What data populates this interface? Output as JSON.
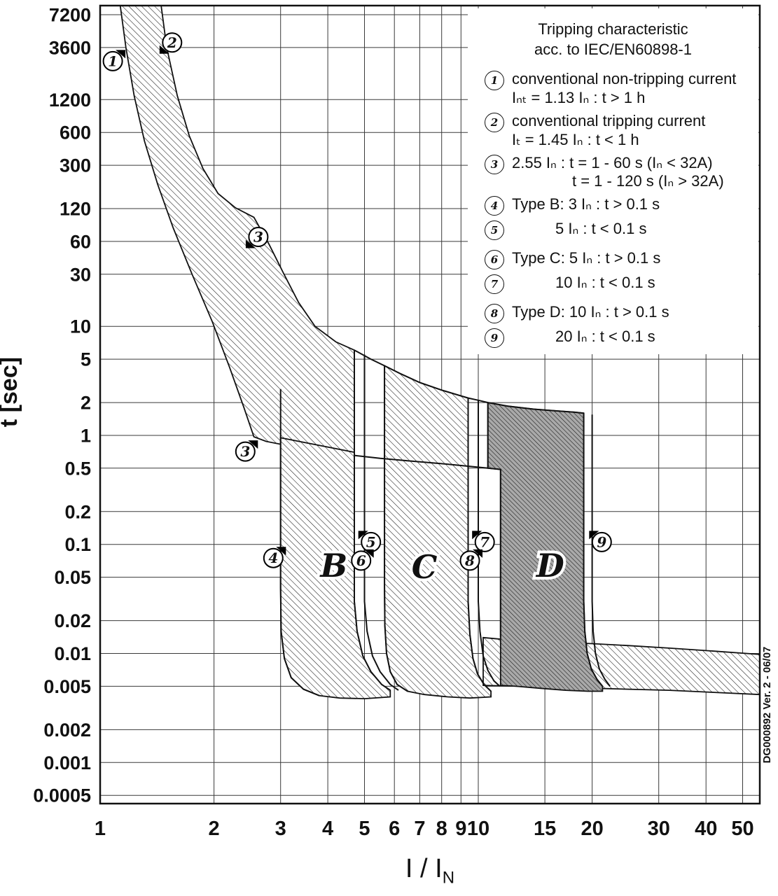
{
  "watermark": "DG000892 Ver. 2 - 06/07",
  "legend": {
    "title1": "Tripping characteristic",
    "title2": "acc. to IEC/EN60898-1",
    "items": [
      {
        "num": "1",
        "line1": "conventional non-tripping current",
        "line2": "Iₙₜ = 1.13 Iₙ : t > 1 h"
      },
      {
        "num": "2",
        "line1": "conventional tripping current",
        "line2": "Iₜ = 1.45 Iₙ : t < 1 h"
      },
      {
        "num": "3",
        "line1": "2.55 Iₙ : t = 1 - 60 s (Iₙ < 32A)",
        "line2": "t = 1 - 120 s (Iₙ > 32A)"
      },
      {
        "num": "4",
        "line1": "Type B: 3 Iₙ : t > 0.1 s"
      },
      {
        "num": "5",
        "line1": "5 Iₙ : t < 0.1 s"
      },
      {
        "num": "6",
        "line1": "Type C: 5 Iₙ : t > 0.1 s"
      },
      {
        "num": "7",
        "line1": "10 Iₙ : t < 0.1 s"
      },
      {
        "num": "8",
        "line1": "Type D: 10 Iₙ : t > 0.1 s"
      },
      {
        "num": "9",
        "line1": "20 Iₙ : t < 0.1 s"
      }
    ]
  },
  "chart_data": {
    "type": "area",
    "title": "Tripping characteristic acc. to IEC/EN60898-1",
    "x_axis": {
      "title_main": "I / I",
      "title_sub": "N",
      "scale": "log",
      "min": 1,
      "max": 55.5,
      "ticks": [
        1,
        2,
        3,
        4,
        5,
        6,
        7,
        8,
        9,
        10,
        15,
        20,
        30,
        40,
        50
      ]
    },
    "y_axis": {
      "label": "t [sec]",
      "scale": "log",
      "min": 0.00042,
      "max": 8730,
      "ticks": [
        7200,
        3600,
        1200,
        600,
        300,
        120,
        60,
        30,
        10,
        5,
        2,
        1,
        0.5,
        0.2,
        0.1,
        0.05,
        0.02,
        0.01,
        0.005,
        0.002,
        0.001,
        0.0005
      ]
    },
    "regions": [
      {
        "name": "thermal-band",
        "fill": "hatch",
        "points": [
          [
            1.45,
            8730
          ],
          [
            1.5,
            3600
          ],
          [
            1.6,
            1300
          ],
          [
            1.72,
            560
          ],
          [
            1.87,
            280
          ],
          [
            2.05,
            165
          ],
          [
            2.28,
            122
          ],
          [
            2.55,
            100
          ],
          [
            2.8,
            56
          ],
          [
            3.05,
            31
          ],
          [
            3.35,
            16.5
          ],
          [
            3.7,
            10
          ],
          [
            4.2,
            7.2
          ],
          [
            4.7,
            6.05
          ],
          [
            4.7,
            0.655
          ],
          [
            4.0,
            0.72
          ],
          [
            3.5,
            0.77
          ],
          [
            3.0,
            0.83
          ],
          [
            2.75,
            0.88
          ],
          [
            2.55,
            0.97
          ],
          [
            2.4,
            1.8
          ],
          [
            2.2,
            4.2
          ],
          [
            1.98,
            11
          ],
          [
            1.75,
            30
          ],
          [
            1.56,
            80
          ],
          [
            1.42,
            200
          ],
          [
            1.31,
            500
          ],
          [
            1.23,
            1300
          ],
          [
            1.17,
            3600
          ],
          [
            1.13,
            8730
          ]
        ]
      },
      {
        "name": "band-B",
        "fill": "hatch",
        "points": [
          [
            3,
            0.95
          ],
          [
            4.7,
            0.7
          ],
          [
            4.7,
            0.03
          ],
          [
            4.78,
            0.016
          ],
          [
            4.95,
            0.0095
          ],
          [
            5.2,
            0.0068
          ],
          [
            5.55,
            0.0052
          ],
          [
            5.85,
            0.0046
          ],
          [
            5.85,
            0.004
          ],
          [
            5.0,
            0.00385
          ],
          [
            4.3,
            0.0039
          ],
          [
            3.8,
            0.0041
          ],
          [
            3.45,
            0.0047
          ],
          [
            3.2,
            0.006
          ],
          [
            3.07,
            0.009
          ],
          [
            3.01,
            0.016
          ],
          [
            3.0,
            0.04
          ]
        ]
      },
      {
        "name": "band-C",
        "fill": "hatch",
        "points": [
          [
            5.65,
            4.35
          ],
          [
            6.2,
            3.7
          ],
          [
            7,
            3.05
          ],
          [
            8,
            2.6
          ],
          [
            9,
            2.3
          ],
          [
            9.4,
            2.2
          ],
          [
            9.4,
            0.03
          ],
          [
            9.5,
            0.015
          ],
          [
            9.68,
            0.009
          ],
          [
            9.95,
            0.0065
          ],
          [
            10.35,
            0.0052
          ],
          [
            10.8,
            0.0045
          ],
          [
            10.8,
            0.004
          ],
          [
            9.5,
            0.0039
          ],
          [
            8.3,
            0.004
          ],
          [
            7.2,
            0.0042
          ],
          [
            6.5,
            0.0045
          ],
          [
            6.1,
            0.0052
          ],
          [
            5.85,
            0.0068
          ],
          [
            5.72,
            0.01
          ],
          [
            5.66,
            0.018
          ],
          [
            5.65,
            0.04
          ]
        ]
      },
      {
        "name": "bottom-band",
        "fill": "hatch",
        "points": [
          [
            10.3,
            0.014
          ],
          [
            13,
            0.013
          ],
          [
            16,
            0.0127
          ],
          [
            20,
            0.0123
          ],
          [
            25,
            0.0118
          ],
          [
            32,
            0.0112
          ],
          [
            42,
            0.0105
          ],
          [
            55.5,
            0.0098
          ],
          [
            55.5,
            0.0042
          ],
          [
            42,
            0.0044
          ],
          [
            32,
            0.0046
          ],
          [
            25,
            0.0047
          ],
          [
            20,
            0.0048
          ],
          [
            16,
            0.0049
          ],
          [
            13,
            0.005
          ],
          [
            10.3,
            0.0051
          ]
        ]
      },
      {
        "name": "band-D",
        "fill": "hatchD",
        "points": [
          [
            10.6,
            2.0
          ],
          [
            12,
            1.85
          ],
          [
            14,
            1.74
          ],
          [
            16,
            1.68
          ],
          [
            18,
            1.63
          ],
          [
            19,
            1.6
          ],
          [
            19,
            0.03
          ],
          [
            19.12,
            0.016
          ],
          [
            19.4,
            0.01
          ],
          [
            19.9,
            0.0072
          ],
          [
            20.6,
            0.0058
          ],
          [
            21.3,
            0.005
          ],
          [
            21.3,
            0.0045
          ],
          [
            19.5,
            0.0045
          ],
          [
            17,
            0.0046
          ],
          [
            14.5,
            0.0048
          ],
          [
            12.6,
            0.005
          ],
          [
            11.45,
            0.0051
          ],
          [
            11.45,
            0.487
          ],
          [
            10.6,
            0.5
          ]
        ]
      }
    ],
    "lines": [
      {
        "name": "lower-curve-tail",
        "points": [
          [
            4.7,
            0.655
          ],
          [
            5.5,
            0.615
          ],
          [
            6.5,
            0.585
          ],
          [
            8,
            0.55
          ],
          [
            9.5,
            0.52
          ],
          [
            10.6,
            0.5
          ],
          [
            11.45,
            0.487
          ],
          [
            11.45,
            0.014
          ]
        ]
      },
      {
        "name": "upper-curve-ext",
        "points": [
          [
            4.7,
            6.05
          ],
          [
            5.2,
            5.0
          ],
          [
            5.65,
            4.35
          ],
          [
            6.2,
            3.7
          ],
          [
            7,
            3.05
          ],
          [
            8,
            2.6
          ],
          [
            9,
            2.3
          ],
          [
            9.4,
            2.2
          ],
          [
            10,
            2.1
          ],
          [
            10.6,
            2.0
          ],
          [
            12,
            1.85
          ],
          [
            14,
            1.74
          ],
          [
            16,
            1.68
          ],
          [
            18,
            1.63
          ],
          [
            19,
            1.6
          ]
        ]
      },
      {
        "name": "b-left-edge",
        "points": [
          [
            3,
            2.66
          ],
          [
            3,
            0.04
          ],
          [
            3.01,
            0.016
          ],
          [
            3.07,
            0.009
          ],
          [
            3.2,
            0.006
          ],
          [
            3.45,
            0.0047
          ],
          [
            3.8,
            0.0041
          ]
        ]
      },
      {
        "name": "b-right-inner",
        "points": [
          [
            4.7,
            6.05
          ],
          [
            4.7,
            0.03
          ],
          [
            4.78,
            0.016
          ],
          [
            4.95,
            0.0095
          ],
          [
            5.2,
            0.0068
          ],
          [
            5.55,
            0.0052
          ],
          [
            5.85,
            0.0046
          ]
        ]
      },
      {
        "name": "b-right-outer",
        "points": [
          [
            5,
            5.5
          ],
          [
            5,
            0.03
          ],
          [
            5.08,
            0.016
          ],
          [
            5.25,
            0.0095
          ],
          [
            5.5,
            0.0068
          ],
          [
            5.85,
            0.0052
          ],
          [
            6.15,
            0.0046
          ]
        ]
      },
      {
        "name": "c-left-edge",
        "points": [
          [
            5.65,
            4.35
          ],
          [
            5.65,
            0.04
          ],
          [
            5.66,
            0.018
          ],
          [
            5.72,
            0.01
          ],
          [
            5.85,
            0.0068
          ],
          [
            6.1,
            0.0052
          ],
          [
            6.5,
            0.0045
          ]
        ]
      },
      {
        "name": "c-right-inner",
        "points": [
          [
            9.4,
            2.2
          ],
          [
            9.4,
            0.03
          ],
          [
            9.5,
            0.015
          ],
          [
            9.68,
            0.009
          ],
          [
            9.95,
            0.0065
          ],
          [
            10.35,
            0.0052
          ],
          [
            10.8,
            0.0045
          ]
        ]
      },
      {
        "name": "c-right-outer",
        "points": [
          [
            10,
            2.08
          ],
          [
            10,
            0.03
          ],
          [
            10.1,
            0.016
          ],
          [
            10.3,
            0.0095
          ],
          [
            10.6,
            0.007
          ],
          [
            11.0,
            0.0056
          ],
          [
            11.4,
            0.005
          ]
        ]
      },
      {
        "name": "d-left-edge",
        "points": [
          [
            10.6,
            2.0
          ],
          [
            10.6,
            0.5
          ]
        ]
      },
      {
        "name": "d-right-inner",
        "points": [
          [
            19,
            1.6
          ],
          [
            19,
            0.03
          ],
          [
            19.12,
            0.016
          ],
          [
            19.4,
            0.01
          ],
          [
            19.9,
            0.0072
          ],
          [
            20.6,
            0.0058
          ],
          [
            21.3,
            0.005
          ]
        ]
      },
      {
        "name": "d-right-outer",
        "points": [
          [
            20,
            1.55
          ],
          [
            20,
            0.03
          ],
          [
            20.12,
            0.016
          ],
          [
            20.4,
            0.01
          ],
          [
            20.9,
            0.0072
          ],
          [
            21.6,
            0.0058
          ],
          [
            22.3,
            0.005
          ]
        ]
      }
    ],
    "markers": [
      {
        "label": "1",
        "x": 1.08,
        "t": 2700,
        "wedge": "tr"
      },
      {
        "label": "2",
        "x": 1.55,
        "t": 4000,
        "wedge": "bl"
      },
      {
        "label": "3",
        "x": 2.62,
        "t": 66,
        "wedge": "bl"
      },
      {
        "label": "3",
        "x": 2.42,
        "t": 0.71,
        "wedge": "tr"
      },
      {
        "label": "4",
        "x": 2.87,
        "t": 0.075,
        "wedge": "tr"
      },
      {
        "label": "5",
        "x": 5.2,
        "t": 0.105,
        "wedge": "tl"
      },
      {
        "label": "6",
        "x": 4.9,
        "t": 0.071,
        "wedge": "tr"
      },
      {
        "label": "7",
        "x": 10.4,
        "t": 0.105,
        "wedge": "tl"
      },
      {
        "label": "8",
        "x": 9.5,
        "t": 0.071,
        "wedge": "tr"
      },
      {
        "label": "9",
        "x": 21.2,
        "t": 0.105,
        "wedge": "tl"
      }
    ],
    "region_labels": [
      {
        "text": "B",
        "x": 4.15,
        "t": 0.064
      },
      {
        "text": "C",
        "x": 7.2,
        "t": 0.062
      },
      {
        "text": "D",
        "x": 15.5,
        "t": 0.064
      }
    ]
  }
}
